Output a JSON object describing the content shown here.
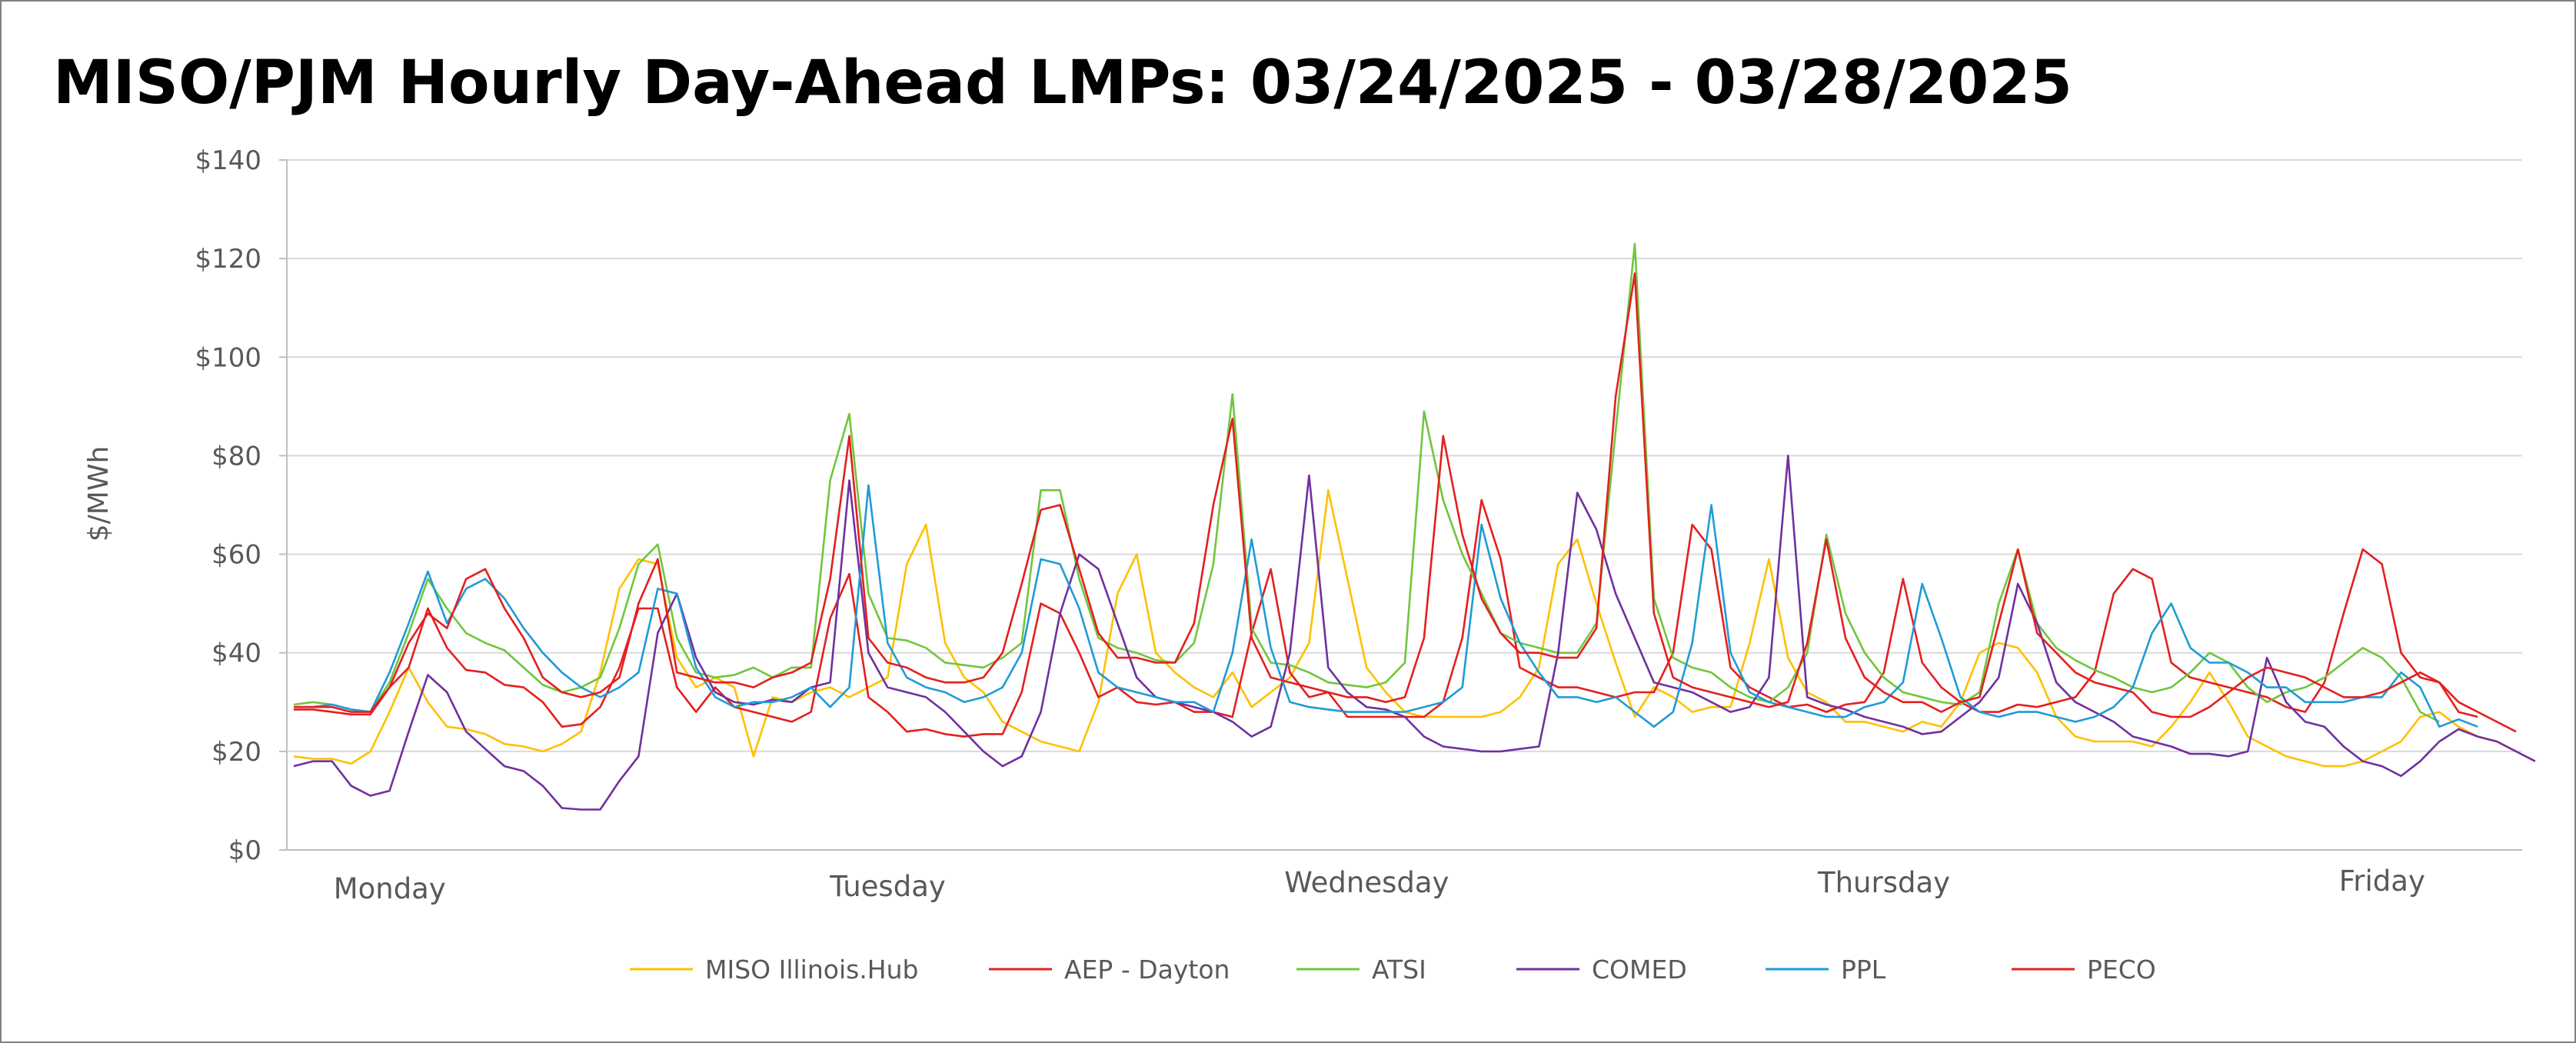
{
  "chart_data": {
    "type": "line",
    "title": "MISO/PJM Hourly Day-Ahead LMPs: 03/24/2025 - 03/28/2025",
    "xlabel": "",
    "ylabel": "$/MWh",
    "ylim": [
      0,
      140
    ],
    "yticks": [
      0,
      20,
      40,
      60,
      80,
      100,
      120,
      140
    ],
    "ytick_labels": [
      "$0",
      "$20",
      "$40",
      "$60",
      "$80",
      "$100",
      "$120",
      "$140"
    ],
    "x_day_labels": [
      {
        "label": "Monday",
        "hour": 3
      },
      {
        "label": "Tuesday",
        "hour": 29
      },
      {
        "label": "Wednesday",
        "hour": 54
      },
      {
        "label": "Thursday",
        "hour": 81
      },
      {
        "label": "Friday",
        "hour": 107
      }
    ],
    "grid": "horizontal",
    "legend_position": "bottom",
    "series": [
      {
        "name": "MISO Illinois.Hub",
        "color": "#FFC000",
        "values": [
          19,
          18.5,
          18.5,
          17.5,
          20,
          28,
          37,
          30,
          25,
          24.5,
          23.5,
          21.5,
          21,
          20,
          21.5,
          24,
          36,
          53,
          59,
          58,
          39,
          33,
          35,
          33,
          19,
          31,
          30,
          32,
          33,
          31,
          33,
          35,
          58,
          66,
          42,
          35,
          32,
          26,
          24,
          22,
          21,
          20,
          30,
          52,
          60,
          40,
          36,
          33,
          31,
          36,
          29,
          32,
          35,
          42,
          73,
          55,
          37,
          32,
          28,
          27,
          27,
          27,
          27,
          28,
          31,
          37,
          58,
          63,
          50,
          38,
          27,
          33,
          31,
          28,
          29,
          29,
          42,
          59,
          39,
          32,
          30,
          26,
          26,
          25,
          24,
          26,
          25,
          30,
          40,
          42,
          41,
          36,
          27,
          23,
          22,
          22,
          22,
          21,
          25,
          30,
          36,
          30,
          23,
          21,
          19,
          18,
          17,
          17,
          18,
          20,
          22,
          27,
          28,
          25,
          23,
          22,
          20
        ]
      },
      {
        "name": "AEP - Dayton",
        "color": "#E41F1F",
        "values": [
          28.5,
          28.5,
          28,
          27.5,
          27.5,
          33,
          37,
          49,
          41,
          36.5,
          36,
          33.5,
          33,
          30,
          25,
          25.5,
          29,
          37,
          49,
          49,
          33,
          28,
          33,
          29,
          28,
          27,
          26,
          28,
          47,
          56,
          31,
          28,
          24,
          24.5,
          23.5,
          23,
          23.5,
          23.5,
          32,
          50,
          48,
          40,
          31,
          33,
          30,
          29.5,
          30,
          28,
          28,
          27,
          44,
          57,
          36,
          31,
          32,
          27,
          27,
          27,
          27,
          27,
          30,
          43,
          71,
          59,
          37,
          35,
          33,
          33,
          32,
          31,
          32,
          32,
          40,
          66,
          61,
          37,
          33,
          31,
          29,
          29.5,
          28,
          29.5,
          30,
          36,
          55,
          38,
          33,
          30,
          28,
          28,
          29.5,
          29,
          30,
          31,
          36,
          52,
          57,
          55,
          38,
          35,
          34,
          33,
          32,
          31,
          29,
          28,
          34,
          48,
          61,
          58,
          40,
          35,
          34,
          30,
          28,
          26,
          24
        ]
      },
      {
        "name": "ATSI",
        "color": "#70C63C",
        "values": [
          29.5,
          30,
          29.5,
          28.5,
          28,
          34,
          44,
          55,
          49,
          44,
          42,
          40.5,
          37,
          33.5,
          32,
          33,
          35,
          45,
          58,
          62,
          43,
          36,
          35,
          35.5,
          37,
          35,
          37,
          37,
          75,
          88.5,
          52,
          43,
          42.5,
          41,
          38,
          37.5,
          37,
          39,
          42,
          73,
          73,
          55,
          43,
          41,
          40,
          38.5,
          38,
          42,
          58,
          92.5,
          45,
          38,
          37.5,
          36,
          34,
          33.5,
          33,
          34,
          38,
          89,
          71,
          60,
          52,
          44,
          42,
          41,
          40,
          40,
          46,
          85,
          123,
          51,
          39,
          37,
          36,
          33,
          31,
          30,
          33,
          40,
          64,
          48,
          40,
          35,
          32,
          31,
          30,
          29.5,
          32,
          50,
          61,
          46,
          41,
          38.5,
          36.5,
          35,
          33,
          32,
          33,
          36,
          40,
          38,
          33,
          30,
          32,
          33,
          35,
          38,
          41,
          39,
          35,
          28,
          26
        ]
      },
      {
        "name": "COMED",
        "color": "#7030A0",
        "values": [
          17,
          18,
          18,
          13,
          11,
          12,
          24,
          35.5,
          32,
          24,
          20.5,
          17,
          16,
          13,
          8.5,
          8.2,
          8.2,
          14,
          19,
          44,
          52,
          39,
          32,
          30,
          29.5,
          30.5,
          30,
          33,
          34,
          75,
          40,
          33,
          32,
          31,
          28,
          24,
          20,
          17,
          19,
          28,
          48,
          60,
          57,
          46,
          35,
          31,
          30,
          29,
          28,
          26,
          23,
          25,
          40,
          76,
          37,
          32,
          29,
          28.5,
          27,
          23,
          21,
          20.5,
          20,
          20,
          20.5,
          21,
          40,
          72.5,
          65,
          52,
          43,
          34,
          33,
          32,
          30,
          28,
          29,
          35,
          80,
          31,
          29.5,
          28.5,
          27,
          26,
          25,
          23.5,
          24,
          27,
          30,
          35,
          54,
          46,
          34,
          30,
          28,
          26,
          23,
          22,
          21,
          19.5,
          19.5,
          19,
          20,
          39,
          30,
          26,
          25,
          21,
          18,
          17,
          15,
          18,
          22,
          24.5,
          23,
          22,
          20,
          18
        ]
      },
      {
        "name": "PPL",
        "color": "#1F9BD7",
        "values": [
          29,
          29,
          29.5,
          28.5,
          28,
          36,
          46,
          56.5,
          46,
          53,
          55,
          51,
          45,
          40,
          36,
          33,
          31,
          33,
          36,
          53,
          52,
          37,
          31,
          29,
          30,
          30,
          31,
          33,
          29,
          33,
          74,
          42,
          35,
          33,
          32,
          30,
          31,
          33,
          40,
          59,
          58,
          49,
          36,
          33,
          32,
          31,
          30,
          30,
          28,
          40,
          63,
          41,
          30,
          29,
          28.5,
          28,
          28,
          28,
          28,
          29,
          30,
          33,
          66,
          51,
          42,
          36,
          31,
          31,
          30,
          31,
          28,
          25,
          28,
          42,
          70,
          40,
          32,
          30,
          29,
          28,
          27,
          27,
          29,
          30,
          34,
          54,
          43,
          31,
          28,
          27,
          28,
          28,
          27,
          26,
          27,
          29,
          33,
          44,
          50,
          41,
          38,
          38,
          36,
          33,
          33,
          30,
          30,
          30,
          31,
          31,
          36,
          33,
          25,
          26.5,
          25
        ]
      },
      {
        "name": "PECO",
        "color": "#E41F1F",
        "values": [
          29,
          29,
          29,
          28,
          28,
          33,
          42,
          48,
          45,
          55,
          57,
          49,
          43,
          35,
          32,
          31,
          32,
          35,
          50,
          59,
          36,
          35,
          34,
          34,
          33,
          35,
          36,
          38,
          55,
          84,
          43,
          38,
          37,
          35,
          34,
          34,
          35,
          40,
          54,
          69,
          70,
          57,
          44,
          39,
          39,
          38,
          38,
          46,
          70,
          87.5,
          43,
          35,
          34,
          33,
          32,
          31,
          31,
          30,
          31,
          43,
          84,
          64,
          51,
          44,
          40,
          40,
          39,
          39,
          45,
          92,
          117,
          48,
          35,
          33,
          32,
          31,
          30,
          29,
          30,
          42,
          63,
          43,
          35,
          32,
          30,
          30,
          28,
          30,
          31,
          46,
          61,
          44,
          40,
          36,
          34,
          33,
          32,
          28,
          27,
          27,
          29,
          32,
          35,
          37,
          36,
          35,
          33,
          31,
          31,
          32,
          34,
          36,
          34,
          28,
          27
        ]
      }
    ]
  }
}
